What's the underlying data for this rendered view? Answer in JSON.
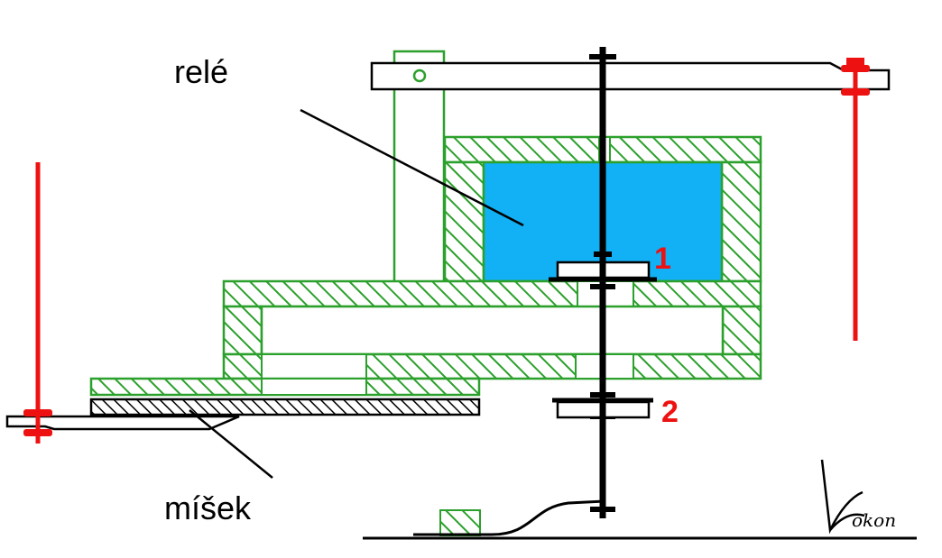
{
  "labels": {
    "rele": "relé",
    "misek": "míšek",
    "one": "1",
    "two": "2"
  },
  "signature": {
    "initial": "K",
    "rest": "okon"
  },
  "colors": {
    "hatch": "#2ca02c",
    "relay_fill": "#12b0f5",
    "rod": "#000000",
    "spring_red": "#ee1111",
    "number_red": "#ee1111",
    "outline": "#000000"
  }
}
